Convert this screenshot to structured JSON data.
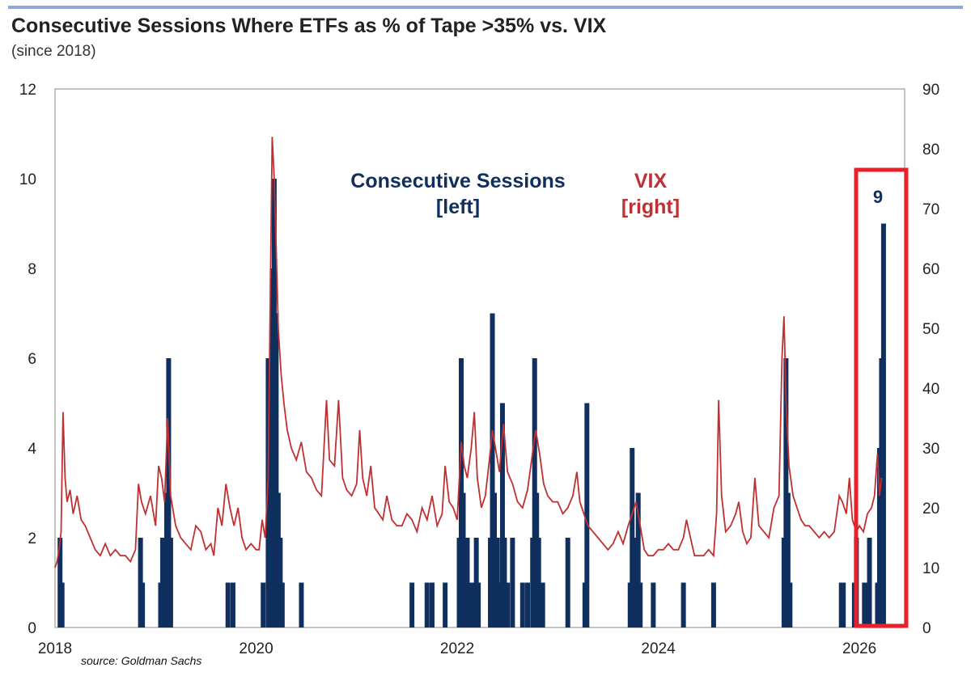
{
  "chart_data": {
    "type": "bar+line",
    "title": "Consecutive Sessions Where ETFs as % of Tape >35% vs. VIX",
    "subtitle": "(since 2018)",
    "source": "source: Goldman Sachs",
    "x_ticks": [
      "2018",
      "2020",
      "2022",
      "2024",
      "2026"
    ],
    "x_range": [
      2018.0,
      2026.45
    ],
    "y_left": {
      "range": [
        0,
        12
      ],
      "ticks": [
        "0",
        "2",
        "4",
        "6",
        "8",
        "10",
        "12"
      ]
    },
    "y_right": {
      "range": [
        0,
        90
      ],
      "ticks": [
        "0",
        "10",
        "20",
        "30",
        "40",
        "50",
        "60",
        "70",
        "80",
        "90"
      ]
    },
    "annotations": {
      "sessions_label_1": "Consecutive Sessions",
      "sessions_label_2": "[left]",
      "vix_label_1": "VIX",
      "vix_label_2": "[right]",
      "highlight_value": "9"
    },
    "colors": {
      "sessions": "#0f2f5e",
      "vix": "#c03032",
      "highlight_box": "#e8202a",
      "grid_border": "#b0b0b0"
    },
    "series": [
      {
        "name": "Consecutive Sessions",
        "axis": "left",
        "type": "bar",
        "points": [
          [
            2018.05,
            2
          ],
          [
            2018.07,
            1
          ],
          [
            2018.85,
            2
          ],
          [
            2018.87,
            1
          ],
          [
            2019.05,
            1
          ],
          [
            2019.07,
            2
          ],
          [
            2019.09,
            1
          ],
          [
            2019.11,
            3
          ],
          [
            2019.13,
            6
          ],
          [
            2019.15,
            2
          ],
          [
            2019.72,
            1
          ],
          [
            2019.77,
            1
          ],
          [
            2020.07,
            1
          ],
          [
            2020.12,
            6
          ],
          [
            2020.14,
            4
          ],
          [
            2020.16,
            8
          ],
          [
            2020.18,
            10
          ],
          [
            2020.2,
            7
          ],
          [
            2020.22,
            3
          ],
          [
            2020.24,
            2
          ],
          [
            2020.26,
            1
          ],
          [
            2020.45,
            1
          ],
          [
            2021.55,
            1
          ],
          [
            2021.7,
            1
          ],
          [
            2021.75,
            1
          ],
          [
            2021.88,
            1
          ],
          [
            2022.02,
            2
          ],
          [
            2022.04,
            6
          ],
          [
            2022.06,
            3
          ],
          [
            2022.08,
            2
          ],
          [
            2022.1,
            2
          ],
          [
            2022.13,
            1
          ],
          [
            2022.15,
            1
          ],
          [
            2022.19,
            2
          ],
          [
            2022.21,
            1
          ],
          [
            2022.33,
            2
          ],
          [
            2022.35,
            7
          ],
          [
            2022.37,
            3
          ],
          [
            2022.4,
            2
          ],
          [
            2022.43,
            1
          ],
          [
            2022.45,
            5
          ],
          [
            2022.47,
            2
          ],
          [
            2022.5,
            1
          ],
          [
            2022.55,
            2
          ],
          [
            2022.65,
            1
          ],
          [
            2022.7,
            1
          ],
          [
            2022.75,
            2
          ],
          [
            2022.77,
            6
          ],
          [
            2022.79,
            3
          ],
          [
            2022.81,
            2
          ],
          [
            2022.85,
            1
          ],
          [
            2023.1,
            2
          ],
          [
            2023.27,
            1
          ],
          [
            2023.29,
            5
          ],
          [
            2023.72,
            1
          ],
          [
            2023.74,
            4
          ],
          [
            2023.76,
            2
          ],
          [
            2023.78,
            2
          ],
          [
            2023.8,
            3
          ],
          [
            2023.82,
            1
          ],
          [
            2023.95,
            1
          ],
          [
            2024.25,
            1
          ],
          [
            2024.55,
            1
          ],
          [
            2025.25,
            2
          ],
          [
            2025.27,
            6
          ],
          [
            2025.29,
            3
          ],
          [
            2025.31,
            1
          ],
          [
            2025.82,
            1
          ],
          [
            2025.84,
            1
          ],
          [
            2025.95,
            1
          ],
          [
            2025.97,
            2
          ],
          [
            2026.05,
            1
          ],
          [
            2026.08,
            1
          ],
          [
            2026.1,
            2
          ],
          [
            2026.18,
            1
          ],
          [
            2026.2,
            4
          ],
          [
            2026.22,
            6
          ],
          [
            2026.24,
            9
          ]
        ]
      },
      {
        "name": "VIX",
        "axis": "right",
        "type": "line",
        "points": [
          [
            2018.0,
            10
          ],
          [
            2018.02,
            11
          ],
          [
            2018.04,
            13
          ],
          [
            2018.06,
            16
          ],
          [
            2018.08,
            36
          ],
          [
            2018.1,
            25
          ],
          [
            2018.12,
            21
          ],
          [
            2018.15,
            23
          ],
          [
            2018.18,
            19
          ],
          [
            2018.22,
            22
          ],
          [
            2018.26,
            18
          ],
          [
            2018.3,
            17
          ],
          [
            2018.35,
            15
          ],
          [
            2018.4,
            13
          ],
          [
            2018.45,
            12
          ],
          [
            2018.5,
            14
          ],
          [
            2018.55,
            12
          ],
          [
            2018.6,
            13
          ],
          [
            2018.65,
            12
          ],
          [
            2018.7,
            12
          ],
          [
            2018.75,
            11
          ],
          [
            2018.8,
            13
          ],
          [
            2018.83,
            24
          ],
          [
            2018.86,
            21
          ],
          [
            2018.9,
            19
          ],
          [
            2018.95,
            22
          ],
          [
            2019.0,
            17
          ],
          [
            2019.03,
            27
          ],
          [
            2019.06,
            25
          ],
          [
            2019.09,
            21
          ],
          [
            2019.12,
            35
          ],
          [
            2019.15,
            22
          ],
          [
            2019.2,
            17
          ],
          [
            2019.25,
            15
          ],
          [
            2019.3,
            14
          ],
          [
            2019.35,
            13
          ],
          [
            2019.4,
            17
          ],
          [
            2019.45,
            16
          ],
          [
            2019.5,
            13
          ],
          [
            2019.55,
            14
          ],
          [
            2019.58,
            12
          ],
          [
            2019.62,
            20
          ],
          [
            2019.66,
            17
          ],
          [
            2019.7,
            24
          ],
          [
            2019.74,
            20
          ],
          [
            2019.78,
            17
          ],
          [
            2019.82,
            20
          ],
          [
            2019.86,
            15
          ],
          [
            2019.9,
            13
          ],
          [
            2019.95,
            14
          ],
          [
            2020.0,
            13
          ],
          [
            2020.03,
            13
          ],
          [
            2020.06,
            18
          ],
          [
            2020.09,
            15
          ],
          [
            2020.12,
            25
          ],
          [
            2020.14,
            54
          ],
          [
            2020.16,
            82
          ],
          [
            2020.18,
            75
          ],
          [
            2020.2,
            63
          ],
          [
            2020.22,
            50
          ],
          [
            2020.25,
            42
          ],
          [
            2020.28,
            37
          ],
          [
            2020.31,
            33
          ],
          [
            2020.35,
            30
          ],
          [
            2020.4,
            28
          ],
          [
            2020.45,
            31
          ],
          [
            2020.5,
            26
          ],
          [
            2020.55,
            25
          ],
          [
            2020.6,
            23
          ],
          [
            2020.65,
            22
          ],
          [
            2020.7,
            38
          ],
          [
            2020.73,
            28
          ],
          [
            2020.78,
            27
          ],
          [
            2020.82,
            38
          ],
          [
            2020.86,
            25
          ],
          [
            2020.9,
            23
          ],
          [
            2020.95,
            22
          ],
          [
            2021.0,
            24
          ],
          [
            2021.03,
            33
          ],
          [
            2021.06,
            25
          ],
          [
            2021.1,
            22
          ],
          [
            2021.14,
            27
          ],
          [
            2021.18,
            20
          ],
          [
            2021.22,
            19
          ],
          [
            2021.26,
            18
          ],
          [
            2021.3,
            22
          ],
          [
            2021.35,
            18
          ],
          [
            2021.4,
            17
          ],
          [
            2021.45,
            17
          ],
          [
            2021.5,
            19
          ],
          [
            2021.55,
            18
          ],
          [
            2021.6,
            16
          ],
          [
            2021.65,
            20
          ],
          [
            2021.7,
            18
          ],
          [
            2021.75,
            22
          ],
          [
            2021.8,
            17
          ],
          [
            2021.85,
            19
          ],
          [
            2021.88,
            27
          ],
          [
            2021.92,
            21
          ],
          [
            2021.96,
            20
          ],
          [
            2022.0,
            18
          ],
          [
            2022.04,
            31
          ],
          [
            2022.07,
            27
          ],
          [
            2022.1,
            25
          ],
          [
            2022.14,
            30
          ],
          [
            2022.17,
            36
          ],
          [
            2022.2,
            25
          ],
          [
            2022.24,
            20
          ],
          [
            2022.28,
            22
          ],
          [
            2022.32,
            28
          ],
          [
            2022.35,
            33
          ],
          [
            2022.38,
            30
          ],
          [
            2022.42,
            26
          ],
          [
            2022.46,
            34
          ],
          [
            2022.5,
            26
          ],
          [
            2022.55,
            24
          ],
          [
            2022.6,
            21
          ],
          [
            2022.65,
            20
          ],
          [
            2022.7,
            23
          ],
          [
            2022.74,
            28
          ],
          [
            2022.78,
            33
          ],
          [
            2022.82,
            29
          ],
          [
            2022.86,
            24
          ],
          [
            2022.9,
            22
          ],
          [
            2022.95,
            21
          ],
          [
            2023.0,
            21
          ],
          [
            2023.05,
            19
          ],
          [
            2023.1,
            20
          ],
          [
            2023.15,
            22
          ],
          [
            2023.19,
            26
          ],
          [
            2023.22,
            21
          ],
          [
            2023.26,
            19
          ],
          [
            2023.3,
            17
          ],
          [
            2023.35,
            16
          ],
          [
            2023.4,
            15
          ],
          [
            2023.45,
            14
          ],
          [
            2023.5,
            13
          ],
          [
            2023.55,
            14
          ],
          [
            2023.6,
            16
          ],
          [
            2023.65,
            14
          ],
          [
            2023.7,
            17
          ],
          [
            2023.74,
            19
          ],
          [
            2023.78,
            21
          ],
          [
            2023.82,
            17
          ],
          [
            2023.86,
            13
          ],
          [
            2023.9,
            12
          ],
          [
            2023.95,
            12
          ],
          [
            2024.0,
            13
          ],
          [
            2024.05,
            13
          ],
          [
            2024.1,
            14
          ],
          [
            2024.15,
            13
          ],
          [
            2024.2,
            13
          ],
          [
            2024.25,
            15
          ],
          [
            2024.28,
            18
          ],
          [
            2024.32,
            15
          ],
          [
            2024.36,
            12
          ],
          [
            2024.4,
            12
          ],
          [
            2024.45,
            12
          ],
          [
            2024.5,
            13
          ],
          [
            2024.55,
            12
          ],
          [
            2024.58,
            19
          ],
          [
            2024.6,
            38
          ],
          [
            2024.63,
            22
          ],
          [
            2024.67,
            16
          ],
          [
            2024.72,
            17
          ],
          [
            2024.77,
            19
          ],
          [
            2024.8,
            21
          ],
          [
            2024.84,
            16
          ],
          [
            2024.88,
            14
          ],
          [
            2024.92,
            15
          ],
          [
            2024.96,
            25
          ],
          [
            2025.0,
            17
          ],
          [
            2025.05,
            16
          ],
          [
            2025.1,
            15
          ],
          [
            2025.15,
            20
          ],
          [
            2025.2,
            22
          ],
          [
            2025.23,
            45
          ],
          [
            2025.25,
            52
          ],
          [
            2025.27,
            38
          ],
          [
            2025.3,
            27
          ],
          [
            2025.34,
            22
          ],
          [
            2025.38,
            20
          ],
          [
            2025.42,
            18
          ],
          [
            2025.46,
            17
          ],
          [
            2025.5,
            17
          ],
          [
            2025.55,
            16
          ],
          [
            2025.6,
            15
          ],
          [
            2025.65,
            16
          ],
          [
            2025.7,
            15
          ],
          [
            2025.75,
            16
          ],
          [
            2025.8,
            22
          ],
          [
            2025.83,
            21
          ],
          [
            2025.87,
            19
          ],
          [
            2025.9,
            25
          ],
          [
            2025.93,
            18
          ],
          [
            2025.97,
            16
          ],
          [
            2026.0,
            17
          ],
          [
            2026.04,
            16
          ],
          [
            2026.08,
            19
          ],
          [
            2026.12,
            20
          ],
          [
            2026.15,
            22
          ],
          [
            2026.18,
            29
          ],
          [
            2026.2,
            22
          ],
          [
            2026.22,
            25
          ]
        ]
      }
    ]
  }
}
